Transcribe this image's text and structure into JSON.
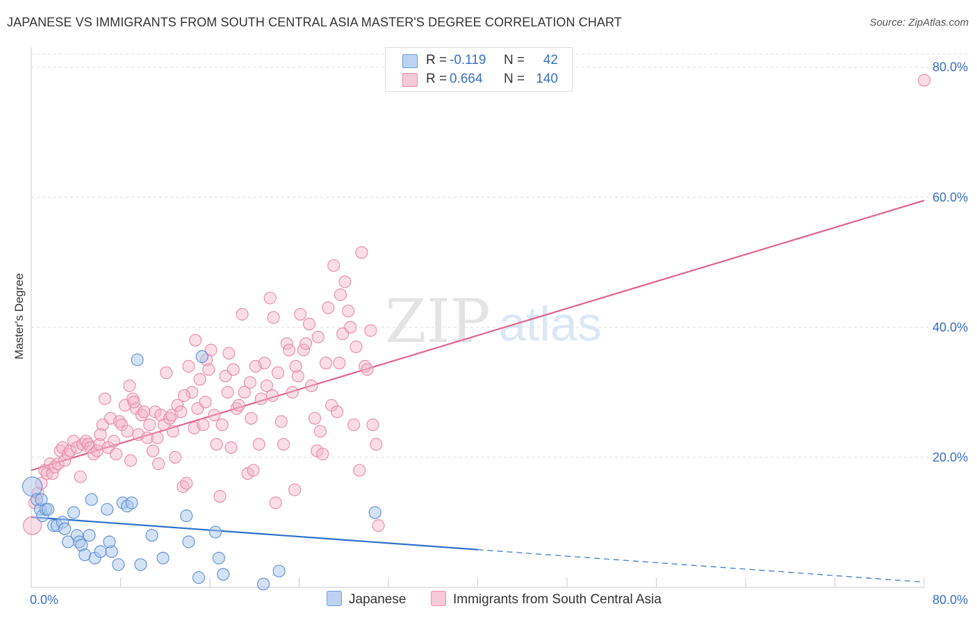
{
  "title": "JAPANESE VS IMMIGRANTS FROM SOUTH CENTRAL ASIA MASTER'S DEGREE CORRELATION CHART",
  "source": "Source: ZipAtlas.com",
  "watermark": {
    "zip": "ZIP",
    "atlas": "atlas"
  },
  "stats": {
    "r_label": "R =",
    "n_label": "N =",
    "japanese": {
      "r": "-0.119",
      "n": "42"
    },
    "immigrants": {
      "r": "0.664",
      "n": "140"
    }
  },
  "legend": {
    "japanese": "Japanese",
    "immigrants": "Immigrants from South Central Asia"
  },
  "colors": {
    "japanese_fill": "#a9c6ee",
    "japanese_stroke": "#5b8fd6",
    "japanese_line": "#2f6fc9",
    "immigrants_fill": "#f5b3c8",
    "immigrants_stroke": "#e88aa8",
    "immigrants_line": "#e0628c",
    "tick_label": "#3a6fc4",
    "grid": "#dddddd"
  },
  "chart_data": {
    "type": "scatter",
    "title": "JAPANESE VS IMMIGRANTS FROM SOUTH CENTRAL ASIA MASTER'S DEGREE CORRELATION CHART",
    "xlabel": "",
    "ylabel": "Master's Degree",
    "xlim": [
      0,
      80
    ],
    "ylim": [
      0,
      82
    ],
    "x_tick_labels": [
      {
        "value": 0,
        "label": "0.0%"
      },
      {
        "value": 80,
        "label": "80.0%"
      }
    ],
    "y_tick_labels": [
      {
        "value": 20,
        "label": "20.0%"
      },
      {
        "value": 40,
        "label": "40.0%"
      },
      {
        "value": 60,
        "label": "60.0%"
      },
      {
        "value": 80,
        "label": "80.0%"
      }
    ],
    "grid": true,
    "legend_position": "bottom",
    "series": [
      {
        "name": "Japanese",
        "points": [
          [
            0.1,
            15.5
          ],
          [
            0.5,
            13.5
          ],
          [
            0.8,
            12.0
          ],
          [
            1.0,
            11.0
          ],
          [
            1.3,
            12.0
          ],
          [
            1.5,
            12.0
          ],
          [
            2.0,
            9.5
          ],
          [
            2.3,
            9.5
          ],
          [
            2.8,
            10.0
          ],
          [
            3.0,
            9.0
          ],
          [
            3.3,
            7.0
          ],
          [
            3.8,
            11.5
          ],
          [
            4.1,
            8.0
          ],
          [
            4.3,
            7.0
          ],
          [
            4.5,
            6.5
          ],
          [
            4.8,
            5.0
          ],
          [
            5.2,
            8.0
          ],
          [
            5.4,
            13.5
          ],
          [
            5.7,
            4.5
          ],
          [
            6.2,
            5.5
          ],
          [
            6.8,
            12.0
          ],
          [
            7.2,
            5.5
          ],
          [
            7.0,
            7.0
          ],
          [
            7.8,
            3.5
          ],
          [
            8.2,
            13.0
          ],
          [
            8.6,
            12.5
          ],
          [
            9.0,
            13.0
          ],
          [
            9.5,
            35.0
          ],
          [
            9.8,
            3.5
          ],
          [
            10.8,
            8.0
          ],
          [
            11.8,
            4.5
          ],
          [
            13.9,
            11.0
          ],
          [
            14.1,
            7.0
          ],
          [
            15.0,
            1.5
          ],
          [
            15.3,
            35.5
          ],
          [
            16.5,
            8.5
          ],
          [
            16.8,
            4.5
          ],
          [
            17.2,
            2.0
          ],
          [
            20.8,
            0.5
          ],
          [
            22.2,
            2.5
          ],
          [
            30.8,
            11.5
          ],
          [
            0.9,
            13.5
          ]
        ],
        "trend_solid": {
          "x": [
            0,
            40
          ],
          "y": [
            10.8,
            5.8
          ]
        },
        "trend_dashed": {
          "x": [
            40,
            80
          ],
          "y": [
            5.8,
            0.8
          ]
        }
      },
      {
        "name": "Immigrants from South Central Asia",
        "points": [
          [
            0.1,
            9.5
          ],
          [
            0.3,
            13.0
          ],
          [
            0.6,
            14.5
          ],
          [
            0.9,
            16.0
          ],
          [
            1.2,
            18.0
          ],
          [
            1.4,
            17.5
          ],
          [
            1.7,
            19.0
          ],
          [
            1.9,
            17.5
          ],
          [
            2.1,
            18.5
          ],
          [
            2.4,
            19.0
          ],
          [
            2.6,
            21.0
          ],
          [
            2.8,
            21.5
          ],
          [
            3.0,
            19.5
          ],
          [
            3.3,
            20.5
          ],
          [
            3.5,
            21.0
          ],
          [
            3.8,
            22.5
          ],
          [
            4.1,
            21.5
          ],
          [
            4.4,
            17.0
          ],
          [
            4.6,
            22.0
          ],
          [
            4.9,
            22.5
          ],
          [
            5.1,
            22.0
          ],
          [
            5.3,
            21.5
          ],
          [
            5.6,
            20.5
          ],
          [
            5.9,
            21.0
          ],
          [
            6.1,
            22.0
          ],
          [
            6.4,
            25.0
          ],
          [
            6.6,
            29.0
          ],
          [
            6.9,
            21.5
          ],
          [
            7.1,
            26.0
          ],
          [
            7.4,
            22.5
          ],
          [
            7.6,
            20.5
          ],
          [
            7.9,
            25.5
          ],
          [
            8.1,
            25.0
          ],
          [
            8.4,
            28.0
          ],
          [
            8.6,
            24.0
          ],
          [
            8.9,
            19.5
          ],
          [
            9.1,
            29.0
          ],
          [
            9.4,
            27.5
          ],
          [
            9.6,
            23.5
          ],
          [
            9.9,
            26.5
          ],
          [
            10.1,
            27.0
          ],
          [
            10.4,
            23.0
          ],
          [
            10.6,
            25.0
          ],
          [
            10.9,
            21.0
          ],
          [
            11.1,
            27.0
          ],
          [
            11.4,
            19.0
          ],
          [
            11.6,
            26.5
          ],
          [
            11.9,
            25.0
          ],
          [
            12.1,
            33.0
          ],
          [
            12.4,
            26.0
          ],
          [
            12.6,
            26.5
          ],
          [
            12.9,
            20.0
          ],
          [
            13.1,
            28.0
          ],
          [
            13.4,
            27.0
          ],
          [
            13.6,
            15.5
          ],
          [
            13.9,
            16.0
          ],
          [
            14.1,
            34.0
          ],
          [
            14.4,
            30.0
          ],
          [
            14.6,
            24.5
          ],
          [
            14.9,
            27.5
          ],
          [
            15.1,
            32.0
          ],
          [
            15.4,
            25.0
          ],
          [
            15.6,
            28.5
          ],
          [
            15.9,
            33.5
          ],
          [
            16.1,
            36.5
          ],
          [
            16.4,
            26.5
          ],
          [
            16.6,
            22.0
          ],
          [
            16.9,
            14.0
          ],
          [
            17.1,
            25.0
          ],
          [
            17.4,
            32.5
          ],
          [
            17.6,
            30.0
          ],
          [
            17.9,
            21.5
          ],
          [
            18.1,
            33.5
          ],
          [
            18.4,
            27.5
          ],
          [
            18.6,
            28.0
          ],
          [
            18.9,
            42.0
          ],
          [
            19.1,
            30.0
          ],
          [
            19.4,
            17.5
          ],
          [
            19.6,
            31.5
          ],
          [
            19.9,
            18.0
          ],
          [
            20.1,
            34.0
          ],
          [
            20.4,
            22.0
          ],
          [
            20.6,
            29.0
          ],
          [
            20.9,
            34.5
          ],
          [
            21.1,
            31.0
          ],
          [
            21.4,
            44.5
          ],
          [
            21.6,
            29.5
          ],
          [
            21.9,
            13.0
          ],
          [
            22.1,
            33.0
          ],
          [
            22.4,
            25.5
          ],
          [
            22.6,
            22.0
          ],
          [
            22.9,
            37.5
          ],
          [
            23.1,
            36.5
          ],
          [
            23.4,
            30.0
          ],
          [
            23.6,
            15.0
          ],
          [
            23.9,
            32.5
          ],
          [
            24.1,
            42.0
          ],
          [
            24.4,
            36.5
          ],
          [
            24.6,
            37.5
          ],
          [
            24.9,
            40.5
          ],
          [
            25.1,
            31.0
          ],
          [
            25.4,
            26.0
          ],
          [
            25.6,
            21.0
          ],
          [
            25.9,
            24.0
          ],
          [
            26.1,
            20.5
          ],
          [
            26.4,
            34.5
          ],
          [
            26.6,
            43.0
          ],
          [
            26.9,
            28.0
          ],
          [
            27.1,
            49.5
          ],
          [
            27.4,
            27.0
          ],
          [
            27.6,
            34.5
          ],
          [
            27.9,
            39.0
          ],
          [
            28.1,
            47.0
          ],
          [
            28.4,
            42.5
          ],
          [
            28.6,
            40.0
          ],
          [
            28.9,
            25.0
          ],
          [
            29.1,
            37.0
          ],
          [
            29.4,
            18.0
          ],
          [
            29.6,
            51.5
          ],
          [
            29.9,
            34.0
          ],
          [
            30.1,
            33.5
          ],
          [
            30.4,
            39.5
          ],
          [
            30.6,
            25.0
          ],
          [
            30.9,
            22.0
          ],
          [
            31.1,
            9.5
          ],
          [
            80.0,
            78.0
          ],
          [
            9.2,
            28.5
          ],
          [
            11.3,
            23.0
          ],
          [
            13.7,
            29.5
          ],
          [
            15.7,
            35.0
          ],
          [
            17.7,
            36.0
          ],
          [
            19.7,
            26.0
          ],
          [
            21.7,
            41.5
          ],
          [
            23.7,
            34.0
          ],
          [
            25.7,
            38.5
          ],
          [
            27.7,
            45.0
          ],
          [
            6.2,
            23.5
          ],
          [
            8.8,
            31.0
          ],
          [
            12.7,
            24.0
          ],
          [
            14.7,
            38.0
          ]
        ],
        "trend": {
          "x": [
            0,
            80
          ],
          "y": [
            18.0,
            59.5
          ]
        }
      }
    ]
  }
}
